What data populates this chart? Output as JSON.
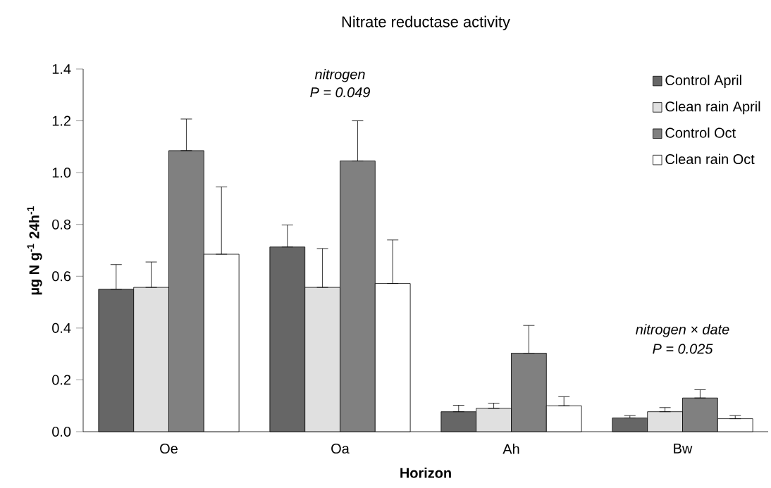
{
  "chart_data": {
    "type": "bar",
    "title": "Nitrate reductase activity",
    "xlabel": "Horizon",
    "ylabel": "µg N g$^{-1}$ 24h$^{-1}$",
    "categories": [
      "Oe",
      "Oa",
      "Ah",
      "Bw"
    ],
    "series": [
      {
        "name": "Control April",
        "color": "#666666",
        "values": [
          0.55,
          0.713,
          0.077,
          0.053
        ],
        "errors": [
          [
            0.55,
            0.645
          ],
          [
            0.713,
            0.798
          ],
          [
            0.077,
            0.102
          ],
          [
            0.053,
            0.062
          ]
        ]
      },
      {
        "name": "Clean rain April",
        "color": "#e0e0e0",
        "values": [
          0.557,
          0.557,
          0.09,
          0.077
        ],
        "errors": [
          [
            0.557,
            0.655
          ],
          [
            0.557,
            0.707
          ],
          [
            0.09,
            0.11
          ],
          [
            0.077,
            0.093
          ]
        ]
      },
      {
        "name": "Control Oct",
        "color": "#808080",
        "values": [
          1.085,
          1.045,
          0.303,
          0.13
        ],
        "errors": [
          [
            1.085,
            1.207
          ],
          [
            1.045,
            1.2
          ],
          [
            0.303,
            0.41
          ],
          [
            0.13,
            0.162
          ]
        ]
      },
      {
        "name": "Clean rain Oct",
        "color": "#ffffff",
        "values": [
          0.685,
          0.572,
          0.1,
          0.05
        ],
        "errors": [
          [
            0.685,
            0.945
          ],
          [
            0.572,
            0.74
          ],
          [
            0.1,
            0.135
          ],
          [
            0.05,
            0.062
          ]
        ]
      }
    ],
    "ylim": [
      0,
      1.4
    ],
    "yticks": [
      {
        "value": 0,
        "label": "0.0"
      },
      {
        "value": 0.2,
        "label": "0.2"
      },
      {
        "value": 0.4,
        "label": "0.4"
      },
      {
        "value": 0.6,
        "label": "0.6"
      },
      {
        "value": 0.8,
        "label": "0.8"
      },
      {
        "value": 1.0,
        "label": "1.0"
      },
      {
        "value": 1.2,
        "label": "1.2"
      },
      {
        "value": 1.4,
        "label": "1.4"
      }
    ],
    "annotations": [
      "nitrogen",
      "P = 0.049",
      "nitrogen × date",
      "P = 0.025"
    ],
    "legend": "top right",
    "grid": false
  }
}
